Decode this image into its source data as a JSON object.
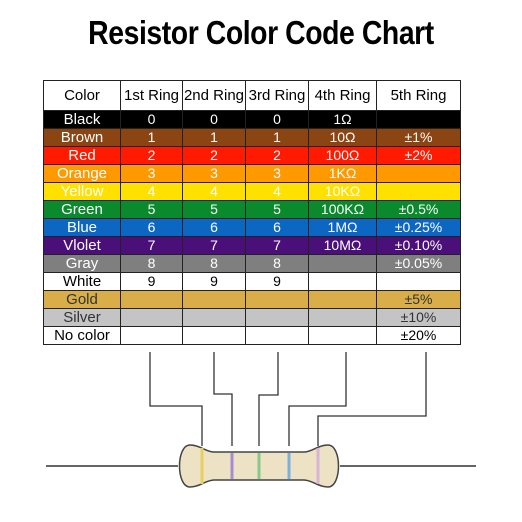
{
  "title": "Resistor Color Code Chart",
  "headers": [
    "Color",
    "1st Ring",
    "2nd Ring",
    "3rd Ring",
    "4th Ring",
    "5th Ring"
  ],
  "rows": [
    {
      "name": "Black",
      "bg": "#000000",
      "fg": "#ffffff",
      "cells": [
        "0",
        "0",
        "0",
        "1Ω",
        ""
      ]
    },
    {
      "name": "Brown",
      "bg": "#8b4513",
      "fg": "#ffffff",
      "cells": [
        "1",
        "1",
        "1",
        "10Ω",
        "±1%"
      ]
    },
    {
      "name": "Red",
      "bg": "#ff1a00",
      "fg": "#ffffff",
      "cells": [
        "2",
        "2",
        "2",
        "100Ω",
        "±2%"
      ]
    },
    {
      "name": "Orange",
      "bg": "#ff9900",
      "fg": "#ffffff",
      "cells": [
        "3",
        "3",
        "3",
        "1KΩ",
        ""
      ]
    },
    {
      "name": "Yellow",
      "bg": "#ffe100",
      "fg": "#ffffff",
      "cells": [
        "4",
        "4",
        "4",
        "10KΩ",
        ""
      ]
    },
    {
      "name": "Green",
      "bg": "#0a8a2c",
      "fg": "#ffffff",
      "cells": [
        "5",
        "5",
        "5",
        "100KΩ",
        "±0.5%"
      ]
    },
    {
      "name": "Blue",
      "bg": "#0b67c2",
      "fg": "#ffffff",
      "cells": [
        "6",
        "6",
        "6",
        "1MΩ",
        "±0.25%"
      ]
    },
    {
      "name": "Vlolet",
      "bg": "#4b0f7a",
      "fg": "#ffffff",
      "cells": [
        "7",
        "7",
        "7",
        "10MΩ",
        "±0.10%"
      ]
    },
    {
      "name": "Gray",
      "bg": "#7f7f7f",
      "fg": "#ffffff",
      "cells": [
        "8",
        "8",
        "8",
        "",
        "±0.05%"
      ]
    },
    {
      "name": "White",
      "bg": "#ffffff",
      "fg": "#000000",
      "cells": [
        "9",
        "9",
        "9",
        "",
        ""
      ]
    },
    {
      "name": "Gold",
      "bg": "#d9ae48",
      "fg": "#333333",
      "cells": [
        "",
        "",
        "",
        "",
        "±5%"
      ]
    },
    {
      "name": "Silver",
      "bg": "#c4c4c4",
      "fg": "#333333",
      "cells": [
        "",
        "",
        "",
        "",
        "±10%"
      ]
    },
    {
      "name": "No color",
      "bg": "#ffffff",
      "fg": "#000000",
      "cells": [
        "",
        "",
        "",
        "",
        "±20%"
      ]
    }
  ],
  "resistor": {
    "body_color": "#ede2c4",
    "outline_color": "#444444",
    "band_colors": [
      "#e8d060",
      "#a78bd6",
      "#86c98a",
      "#7ab0de",
      "#d8b4d4"
    ]
  }
}
